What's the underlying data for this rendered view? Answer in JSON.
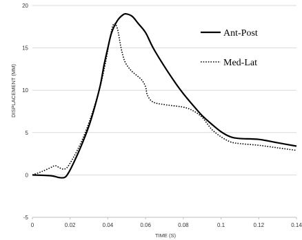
{
  "chart_data": {
    "type": "line",
    "title": "",
    "xlabel": "TIME (S)",
    "ylabel": "DISPLACEMENT (MM)",
    "xlim": [
      0,
      0.14
    ],
    "ylim": [
      -5,
      20
    ],
    "xticks": [
      0,
      0.02,
      0.04,
      0.06,
      0.08,
      0.1,
      0.12,
      0.14
    ],
    "xtick_labels": [
      "0",
      "0.02",
      "0.04",
      "0.06",
      "0.08",
      "0.1",
      "0.12",
      "0.14"
    ],
    "yticks": [
      -5,
      0,
      5,
      10,
      15,
      20
    ],
    "ytick_labels": [
      "-5",
      "0",
      "5",
      "10",
      "15",
      "20"
    ],
    "grid": "horizontal",
    "legend_position": "top-right",
    "series": [
      {
        "name": "Ant-Post",
        "style": "solid",
        "color": "#000000",
        "points": [
          [
            0,
            0
          ],
          [
            0.01,
            -0.1
          ],
          [
            0.014,
            -0.3
          ],
          [
            0.017,
            -0.3
          ],
          [
            0.019,
            0.2
          ],
          [
            0.022,
            1.5
          ],
          [
            0.026,
            3.5
          ],
          [
            0.03,
            5.8
          ],
          [
            0.033,
            8.0
          ],
          [
            0.036,
            10.6
          ],
          [
            0.038,
            13.0
          ],
          [
            0.04,
            15.0
          ],
          [
            0.042,
            16.8
          ],
          [
            0.045,
            18.2
          ],
          [
            0.048,
            18.9
          ],
          [
            0.05,
            19.0
          ],
          [
            0.053,
            18.7
          ],
          [
            0.056,
            17.9
          ],
          [
            0.06,
            16.8
          ],
          [
            0.064,
            15.0
          ],
          [
            0.07,
            12.8
          ],
          [
            0.076,
            10.8
          ],
          [
            0.08,
            9.6
          ],
          [
            0.086,
            8.0
          ],
          [
            0.09,
            7.0
          ],
          [
            0.095,
            6.0
          ],
          [
            0.1,
            5.1
          ],
          [
            0.105,
            4.5
          ],
          [
            0.11,
            4.3
          ],
          [
            0.12,
            4.2
          ],
          [
            0.13,
            3.8
          ],
          [
            0.14,
            3.4
          ]
        ]
      },
      {
        "name": "Med-Lat",
        "style": "dotted",
        "color": "#000000",
        "points": [
          [
            0,
            0
          ],
          [
            0.005,
            0.4
          ],
          [
            0.01,
            0.9
          ],
          [
            0.012,
            1.1
          ],
          [
            0.014,
            0.9
          ],
          [
            0.016,
            0.7
          ],
          [
            0.018,
            0.8
          ],
          [
            0.02,
            1.4
          ],
          [
            0.024,
            3.0
          ],
          [
            0.028,
            5.0
          ],
          [
            0.032,
            7.5
          ],
          [
            0.036,
            10.5
          ],
          [
            0.039,
            13.5
          ],
          [
            0.041,
            16.0
          ],
          [
            0.043,
            17.8
          ],
          [
            0.045,
            17.3
          ],
          [
            0.047,
            15.0
          ],
          [
            0.049,
            13.4
          ],
          [
            0.052,
            12.4
          ],
          [
            0.055,
            11.8
          ],
          [
            0.058,
            11.2
          ],
          [
            0.06,
            10.4
          ],
          [
            0.061,
            9.4
          ],
          [
            0.064,
            8.6
          ],
          [
            0.07,
            8.3
          ],
          [
            0.08,
            8.0
          ],
          [
            0.085,
            7.6
          ],
          [
            0.09,
            6.8
          ],
          [
            0.095,
            5.4
          ],
          [
            0.1,
            4.5
          ],
          [
            0.105,
            3.9
          ],
          [
            0.11,
            3.7
          ],
          [
            0.12,
            3.5
          ],
          [
            0.13,
            3.2
          ],
          [
            0.14,
            2.9
          ]
        ]
      }
    ]
  }
}
